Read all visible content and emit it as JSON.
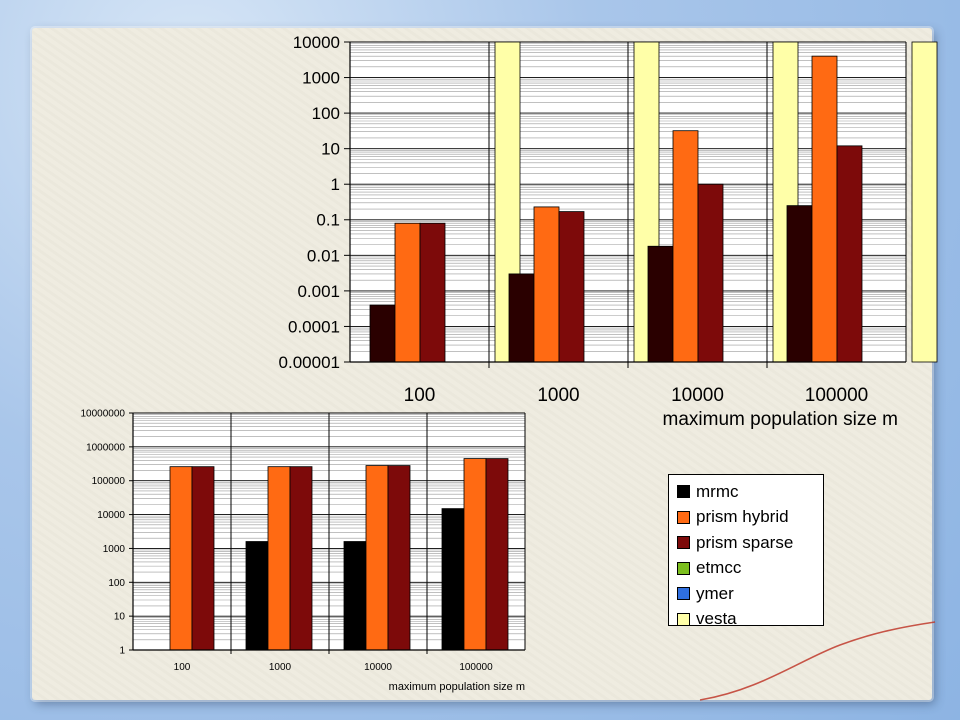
{
  "chart_data": [
    {
      "type": "bar",
      "yscale": "log",
      "ylim": [
        1e-05,
        10000
      ],
      "grid": true,
      "categories": [
        "100",
        "1000",
        "10000",
        "100000"
      ],
      "xlabel": "maximum population size m",
      "ylabel": "",
      "yticks": [
        "10000",
        "1000",
        "100",
        "10",
        "1",
        "0.1",
        "0.01",
        "0.001",
        "0.0001",
        "0.00001"
      ],
      "series": [
        {
          "name": "mrmc",
          "color": "#2a0000",
          "values": [
            0.0004,
            0.003,
            0.018,
            0.25
          ]
        },
        {
          "name": "prism hybrid",
          "color": "#ff6a13",
          "values": [
            0.08,
            0.23,
            32,
            4000
          ]
        },
        {
          "name": "prism sparse",
          "color": "#7d0a0a",
          "values": [
            0.08,
            0.17,
            1,
            12
          ]
        },
        {
          "name": "etmcc",
          "color": "#7cbf1e",
          "values": [
            null,
            null,
            null,
            null
          ]
        },
        {
          "name": "ymer",
          "color": "#2f6fe0",
          "values": [
            null,
            null,
            null,
            null
          ]
        },
        {
          "name": "vesta",
          "color": "#ffffa8",
          "values": [
            10000,
            10000,
            10000,
            10000
          ]
        }
      ]
    },
    {
      "type": "bar",
      "yscale": "log",
      "ylim": [
        1,
        10000000
      ],
      "grid": true,
      "categories": [
        "100",
        "1000",
        "10000",
        "100000"
      ],
      "xlabel": "maximum population size m",
      "ylabel": "",
      "yticks": [
        "10000000",
        "1000000",
        "100000",
        "10000",
        "1000",
        "100",
        "10",
        "1"
      ],
      "series": [
        {
          "name": "mrmc",
          "color": "#000000",
          "values": [
            null,
            1600,
            1600,
            15000
          ]
        },
        {
          "name": "prism hybrid",
          "color": "#ff6a13",
          "values": [
            260000,
            260000,
            280000,
            450000
          ]
        },
        {
          "name": "prism sparse",
          "color": "#7d0a0a",
          "values": [
            260000,
            260000,
            280000,
            450000
          ]
        }
      ]
    }
  ],
  "legend": [
    {
      "label": "mrmc",
      "color": "#000000"
    },
    {
      "label": "prism hybrid",
      "color": "#ff6a13"
    },
    {
      "label": "prism sparse",
      "color": "#7d0a0a"
    },
    {
      "label": "etmcc",
      "color": "#7cbf1e"
    },
    {
      "label": "ymer",
      "color": "#2f6fe0"
    },
    {
      "label": "vesta",
      "color": "#ffffa8"
    }
  ]
}
